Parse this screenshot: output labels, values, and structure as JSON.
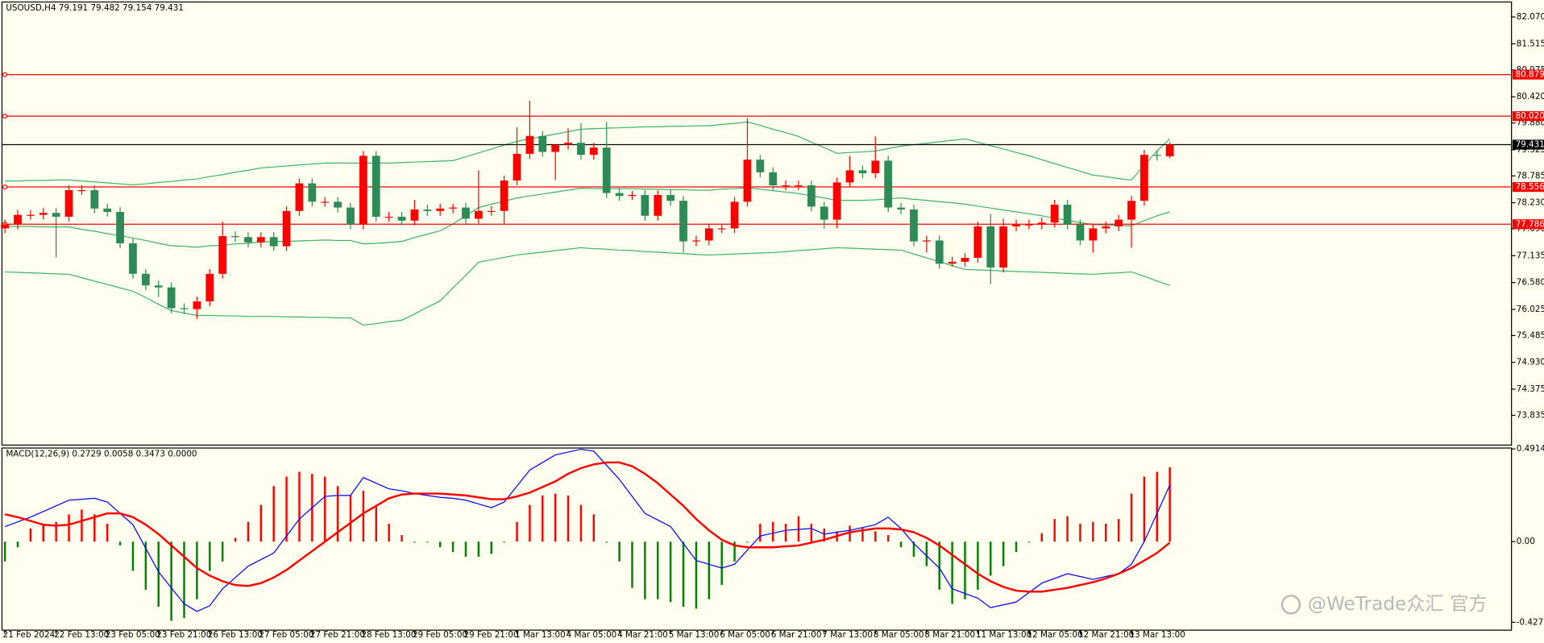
{
  "chart_data": [
    {
      "type": "candlestick",
      "title": "USOUSD,H4  79.191 79.482 79.154 79.431",
      "categories": [
        "21 Feb 2024",
        null,
        null,
        null,
        "22 Feb 13:00",
        null,
        null,
        null,
        "23 Feb 05:00",
        null,
        null,
        null,
        "23 Feb 21:00",
        null,
        null,
        null,
        "26 Feb 13:00",
        null,
        null,
        null,
        "27 Feb 05:00",
        null,
        null,
        null,
        "27 Feb 21:00",
        null,
        null,
        null,
        "28 Feb 13:00",
        null,
        null,
        null,
        "29 Feb 05:00",
        null,
        null,
        null,
        "29 Feb 21:00",
        null,
        null,
        null,
        "1 Mar 13:00",
        null,
        null,
        null,
        "4 Mar 05:00",
        null,
        null,
        null,
        "4 Mar 21:00",
        null,
        null,
        null,
        "5 Mar 13:00",
        null,
        null,
        null,
        "6 Mar 05:00",
        null,
        null,
        null,
        "6 Mar 21:00",
        null,
        null,
        null,
        "7 Mar 13:00",
        null,
        null,
        null,
        "8 Mar 05:00",
        null,
        null,
        null,
        "8 Mar 21:00",
        null,
        null,
        null,
        "11 Mar 13:00",
        null,
        null,
        null,
        "12 Mar 05:00",
        null,
        null,
        null,
        "12 Mar 21:00",
        null,
        null,
        null,
        "13 Mar 13:00",
        null,
        null,
        null
      ],
      "open": [
        77.7,
        77.78,
        77.98,
        77.98,
        78.02,
        77.94,
        78.49,
        78.49,
        78.11,
        78.04,
        77.39,
        76.76,
        76.52,
        76.48,
        76.05,
        76.03,
        76.19,
        76.76,
        77.54,
        77.52,
        77.41,
        77.52,
        77.33,
        78.06,
        78.63,
        78.25,
        78.25,
        78.13,
        77.78,
        79.2,
        77.94,
        77.94,
        77.86,
        78.09,
        78.06,
        78.11,
        78.13,
        77.9,
        78.06,
        78.06,
        78.69,
        79.24,
        79.61,
        79.28,
        79.43,
        79.47,
        79.22,
        79.37,
        78.43,
        78.37,
        78.39,
        77.96,
        78.39,
        78.27,
        77.43,
        77.45,
        77.7,
        77.7,
        78.25,
        79.12,
        78.86,
        78.59,
        78.59,
        78.59,
        78.15,
        77.88,
        78.65,
        78.9,
        78.84,
        79.1,
        78.13,
        78.09,
        77.43,
        77.45,
        76.97,
        77.01,
        77.09,
        77.74,
        76.89,
        77.74,
        77.78,
        77.78,
        77.82,
        78.19,
        77.78,
        77.45,
        77.7,
        77.74,
        77.88,
        78.27,
        79.22,
        79.19
      ],
      "high": [
        77.88,
        78.08,
        78.08,
        78.12,
        78.12,
        78.59,
        78.59,
        78.59,
        78.21,
        78.14,
        77.49,
        76.86,
        76.62,
        76.58,
        76.15,
        76.29,
        76.86,
        77.84,
        77.64,
        77.62,
        77.62,
        77.62,
        78.16,
        78.73,
        78.73,
        78.35,
        78.35,
        78.23,
        79.3,
        79.3,
        78.04,
        78.04,
        78.29,
        78.19,
        78.21,
        78.21,
        78.23,
        78.9,
        78.16,
        78.79,
        79.79,
        80.34,
        79.71,
        79.38,
        79.77,
        79.87,
        79.47,
        79.9,
        78.53,
        78.47,
        78.49,
        78.49,
        78.49,
        78.37,
        77.55,
        77.8,
        77.8,
        78.35,
        79.98,
        79.22,
        78.96,
        78.69,
        78.69,
        78.69,
        78.25,
        78.75,
        79.2,
        79.0,
        79.6,
        79.2,
        78.23,
        78.19,
        77.55,
        77.55,
        77.11,
        77.19,
        77.84,
        78.0,
        77.9,
        77.88,
        77.88,
        77.92,
        78.29,
        78.29,
        77.88,
        77.8,
        77.84,
        77.98,
        78.37,
        79.32,
        79.32,
        79.48
      ],
      "low": [
        77.6,
        77.68,
        77.88,
        77.88,
        77.1,
        77.84,
        78.39,
        78.01,
        77.94,
        77.29,
        76.66,
        76.42,
        76.28,
        75.95,
        75.93,
        75.83,
        76.09,
        76.66,
        77.42,
        77.31,
        77.31,
        77.23,
        77.23,
        77.96,
        78.15,
        78.15,
        78.03,
        77.68,
        77.68,
        77.84,
        77.84,
        77.76,
        77.76,
        77.96,
        77.96,
        78.01,
        77.8,
        77.8,
        77.96,
        77.8,
        78.59,
        79.14,
        79.18,
        78.7,
        79.33,
        79.12,
        79.12,
        78.33,
        78.27,
        78.29,
        77.86,
        77.86,
        78.17,
        77.2,
        77.33,
        77.35,
        77.6,
        77.6,
        78.15,
        78.76,
        78.49,
        78.49,
        78.49,
        78.05,
        77.7,
        77.7,
        78.55,
        78.74,
        78.74,
        78.03,
        77.99,
        77.33,
        77.2,
        76.87,
        76.91,
        76.91,
        76.99,
        76.55,
        76.79,
        77.64,
        77.68,
        77.68,
        77.72,
        77.68,
        77.35,
        77.2,
        77.6,
        77.64,
        77.3,
        78.17,
        79.1,
        79.15
      ],
      "close": [
        77.78,
        77.98,
        77.98,
        78.02,
        77.94,
        78.49,
        78.49,
        78.11,
        78.04,
        77.39,
        76.76,
        76.52,
        76.48,
        76.05,
        76.03,
        76.19,
        76.76,
        77.54,
        77.52,
        77.41,
        77.52,
        77.33,
        78.06,
        78.63,
        78.25,
        78.25,
        78.13,
        77.78,
        79.2,
        77.94,
        77.94,
        77.86,
        78.09,
        78.06,
        78.11,
        78.13,
        77.9,
        78.06,
        78.06,
        78.69,
        79.24,
        79.61,
        79.28,
        79.43,
        79.47,
        79.22,
        79.37,
        78.43,
        78.37,
        78.39,
        77.96,
        78.39,
        78.27,
        77.43,
        77.45,
        77.7,
        77.7,
        78.25,
        79.12,
        78.86,
        78.59,
        78.59,
        78.59,
        78.15,
        77.88,
        78.65,
        78.9,
        78.84,
        79.1,
        78.13,
        78.09,
        77.43,
        77.45,
        76.97,
        77.01,
        77.09,
        77.74,
        76.89,
        77.74,
        77.78,
        77.78,
        77.82,
        78.19,
        77.78,
        77.45,
        77.7,
        77.74,
        77.88,
        78.27,
        79.22,
        79.2,
        79.431
      ],
      "up_color": "#ff0000",
      "down_color": "#2e8b57",
      "bands": {
        "color": "#3cb371",
        "upper": [
          78.68,
          78.68,
          78.69,
          78.69,
          78.7,
          78.7,
          78.68,
          78.66,
          78.64,
          78.62,
          78.6,
          78.62,
          78.65,
          78.67,
          78.7,
          78.72,
          78.77,
          78.81,
          78.86,
          78.9,
          78.95,
          78.97,
          78.99,
          79.01,
          79.03,
          79.05,
          79.05,
          79.05,
          79.05,
          79.05,
          79.05,
          79.06,
          79.07,
          79.08,
          79.09,
          79.1,
          79.18,
          79.26,
          79.34,
          79.42,
          79.5,
          79.55,
          79.6,
          79.65,
          79.7,
          79.75,
          79.76,
          79.77,
          79.78,
          79.79,
          79.8,
          79.8,
          79.81,
          79.81,
          79.82,
          79.82,
          79.85,
          79.87,
          79.9,
          79.83,
          79.75,
          79.68,
          79.6,
          79.48,
          79.37,
          79.25,
          79.27,
          79.28,
          79.3,
          79.35,
          79.4,
          79.43,
          79.46,
          79.49,
          79.52,
          79.55,
          79.48,
          79.41,
          79.34,
          79.27,
          79.2,
          79.12,
          79.04,
          78.96,
          78.88,
          78.8,
          78.77,
          78.73,
          78.7,
          79.0,
          79.3,
          79.55
        ],
        "middle": [
          77.74,
          77.74,
          77.74,
          77.73,
          77.73,
          77.73,
          77.68,
          77.64,
          77.59,
          77.55,
          77.5,
          77.45,
          77.39,
          77.34,
          77.33,
          77.31,
          77.34,
          77.35,
          77.38,
          77.39,
          77.42,
          77.43,
          77.43,
          77.44,
          77.45,
          77.46,
          77.45,
          77.45,
          77.38,
          77.39,
          77.41,
          77.43,
          77.51,
          77.58,
          77.65,
          77.79,
          77.96,
          78.13,
          78.2,
          78.26,
          78.33,
          78.37,
          78.41,
          78.45,
          78.49,
          78.53,
          78.52,
          78.52,
          78.52,
          78.52,
          78.51,
          78.51,
          78.5,
          78.5,
          78.49,
          78.49,
          78.51,
          78.52,
          78.54,
          78.51,
          78.48,
          78.45,
          78.42,
          78.37,
          78.33,
          78.28,
          78.28,
          78.28,
          78.29,
          78.31,
          78.33,
          78.3,
          78.28,
          78.25,
          78.23,
          78.2,
          78.16,
          78.12,
          78.08,
          78.04,
          78.0,
          77.96,
          77.91,
          77.87,
          77.82,
          77.78,
          77.77,
          77.76,
          77.75,
          77.86,
          77.96,
          78.04
        ],
        "lower": [
          76.8,
          76.79,
          76.78,
          76.77,
          76.76,
          76.75,
          76.68,
          76.61,
          76.54,
          76.47,
          76.4,
          76.27,
          76.13,
          76.0,
          75.95,
          75.9,
          75.9,
          75.89,
          75.89,
          75.88,
          75.88,
          75.88,
          75.87,
          75.87,
          75.86,
          75.86,
          75.85,
          75.85,
          75.7,
          75.73,
          75.77,
          75.8,
          75.93,
          76.07,
          76.2,
          76.47,
          76.73,
          77.0,
          77.05,
          77.1,
          77.15,
          77.18,
          77.21,
          77.24,
          77.27,
          77.3,
          77.28,
          77.27,
          77.25,
          77.24,
          77.22,
          77.21,
          77.19,
          77.18,
          77.16,
          77.15,
          77.16,
          77.17,
          77.18,
          77.19,
          77.2,
          77.22,
          77.24,
          77.26,
          77.28,
          77.3,
          77.29,
          77.28,
          77.27,
          77.26,
          77.25,
          77.17,
          77.09,
          77.01,
          76.93,
          76.85,
          76.84,
          76.83,
          76.82,
          76.81,
          76.8,
          76.79,
          76.78,
          76.77,
          76.76,
          76.75,
          76.77,
          76.78,
          76.8,
          76.71,
          76.61,
          76.52
        ]
      },
      "levels": [
        {
          "value": 80.879,
          "label": "80.879",
          "color": "#ff0000"
        },
        {
          "value": 80.02,
          "label": "80.020",
          "color": "#ff0000"
        },
        {
          "value": 79.431,
          "label": "79.431",
          "color": "#000000"
        },
        {
          "value": 78.556,
          "label": "78.556",
          "color": "#ff0000"
        },
        {
          "value": 77.786,
          "label": "77.786",
          "color": "#ff0000"
        }
      ],
      "ylim": [
        73.22,
        82.38
      ],
      "yticks": [
        {
          "value": 82.07,
          "label": "82.070"
        },
        {
          "value": 81.515,
          "label": "81.515"
        },
        {
          "value": 80.975,
          "label": "80.975"
        },
        {
          "value": 80.42,
          "label": "80.420"
        },
        {
          "value": 79.88,
          "label": "79.880"
        },
        {
          "value": 79.325,
          "label": "79.325"
        },
        {
          "value": 78.785,
          "label": "78.785"
        },
        {
          "value": 78.23,
          "label": "78.230"
        },
        {
          "value": 77.69,
          "label": "77.690"
        },
        {
          "value": 77.135,
          "label": "77.135"
        },
        {
          "value": 76.58,
          "label": "76.580"
        },
        {
          "value": 76.025,
          "label": "76.025"
        },
        {
          "value": 75.485,
          "label": "75.485"
        },
        {
          "value": 74.93,
          "label": "74.930"
        },
        {
          "value": 74.375,
          "label": "74.375"
        },
        {
          "value": 73.835,
          "label": "73.835"
        }
      ]
    },
    {
      "type": "macd",
      "title": "MACD(12,26,9) 0.2729 0.0058 0.3473 0.0000",
      "histogram": {
        "up_color": "#ff0000",
        "down_color": "#008000",
        "values": [
          -0.105,
          -0.03,
          0.07,
          0.095,
          0.105,
          0.145,
          0.17,
          0.145,
          0.095,
          -0.02,
          -0.155,
          -0.255,
          -0.345,
          -0.42,
          -0.405,
          -0.305,
          -0.155,
          -0.105,
          0.02,
          0.105,
          0.195,
          0.295,
          0.345,
          0.37,
          0.36,
          0.345,
          0.295,
          0.245,
          0.27,
          0.195,
          0.095,
          0.035,
          -0.005,
          -0.005,
          -0.03,
          -0.055,
          -0.08,
          -0.08,
          -0.065,
          -0.005,
          0.105,
          0.195,
          0.245,
          0.255,
          0.245,
          0.195,
          0.145,
          -0.005,
          -0.105,
          -0.245,
          -0.305,
          -0.305,
          -0.32,
          -0.345,
          -0.355,
          -0.305,
          -0.23,
          -0.105,
          -0.005,
          0.095,
          0.105,
          0.095,
          0.135,
          0.095,
          0.07,
          0.055,
          0.085,
          0.075,
          0.055,
          0.035,
          -0.03,
          -0.08,
          -0.13,
          -0.255,
          -0.33,
          -0.305,
          -0.255,
          -0.18,
          -0.13,
          -0.055,
          -0.005,
          0.045,
          0.12,
          0.135,
          0.095,
          0.105,
          0.095,
          0.12,
          0.255,
          0.345,
          0.37,
          0.395
        ]
      },
      "macd": {
        "color": "#0000ff",
        "values": [
          0.08,
          0.105,
          0.13,
          0.16,
          0.19,
          0.22,
          0.225,
          0.23,
          0.21,
          0.15,
          0.09,
          -0.035,
          -0.16,
          -0.245,
          -0.33,
          -0.37,
          -0.34,
          -0.25,
          -0.19,
          -0.13,
          -0.095,
          -0.06,
          0.03,
          0.12,
          0.18,
          0.24,
          0.245,
          0.245,
          0.34,
          0.31,
          0.28,
          0.27,
          0.255,
          0.245,
          0.235,
          0.23,
          0.22,
          0.2,
          0.18,
          0.21,
          0.295,
          0.38,
          0.42,
          0.46,
          0.475,
          0.49,
          0.48,
          0.405,
          0.33,
          0.24,
          0.15,
          0.115,
          0.08,
          -0.01,
          -0.1,
          -0.12,
          -0.14,
          -0.12,
          -0.045,
          0.03,
          0.045,
          0.06,
          0.065,
          0.07,
          0.04,
          0.05,
          0.06,
          0.075,
          0.09,
          0.13,
          0.07,
          -0.01,
          -0.075,
          -0.14,
          -0.25,
          -0.275,
          -0.3,
          -0.35,
          -0.335,
          -0.32,
          -0.27,
          -0.22,
          -0.195,
          -0.17,
          -0.185,
          -0.2,
          -0.185,
          -0.17,
          -0.12,
          0.0,
          0.15,
          0.3
        ]
      },
      "signal": {
        "color": "#ff0000",
        "values": [
          0.145,
          0.13,
          0.11,
          0.09,
          0.085,
          0.09,
          0.11,
          0.13,
          0.15,
          0.15,
          0.13,
          0.09,
          0.04,
          -0.02,
          -0.08,
          -0.14,
          -0.18,
          -0.21,
          -0.23,
          -0.235,
          -0.22,
          -0.19,
          -0.15,
          -0.1,
          -0.05,
          0.0,
          0.05,
          0.1,
          0.15,
          0.19,
          0.23,
          0.25,
          0.255,
          0.255,
          0.255,
          0.25,
          0.245,
          0.235,
          0.225,
          0.225,
          0.24,
          0.26,
          0.29,
          0.32,
          0.36,
          0.39,
          0.41,
          0.42,
          0.42,
          0.4,
          0.36,
          0.31,
          0.25,
          0.19,
          0.12,
          0.06,
          0.01,
          -0.02,
          -0.03,
          -0.03,
          -0.03,
          -0.025,
          -0.02,
          -0.005,
          0.01,
          0.03,
          0.05,
          0.06,
          0.07,
          0.07,
          0.065,
          0.05,
          0.02,
          -0.02,
          -0.07,
          -0.12,
          -0.17,
          -0.21,
          -0.24,
          -0.26,
          -0.265,
          -0.265,
          -0.255,
          -0.245,
          -0.23,
          -0.215,
          -0.195,
          -0.17,
          -0.14,
          -0.1,
          -0.06,
          -0.005
        ]
      },
      "ylim": [
        -0.4276,
        0.4914
      ],
      "yticks": [
        {
          "value": 0.4914,
          "label": "0.4914"
        },
        {
          "value": 0,
          "label": "0.00"
        },
        {
          "value": -0.4276,
          "label": "-0.4276"
        }
      ]
    }
  ],
  "watermark": "@WeTrade众汇 官方"
}
